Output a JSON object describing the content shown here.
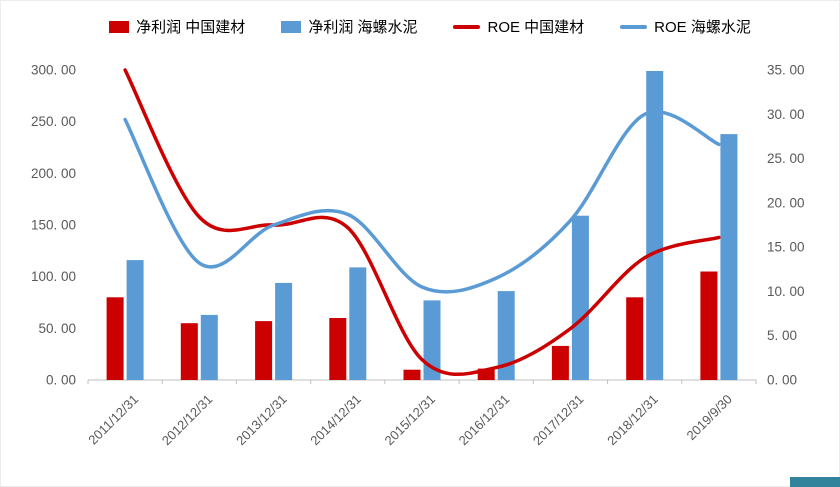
{
  "page": {
    "background": "#ffffff"
  },
  "colors": {
    "red": "#CC0000",
    "blue": "#5B9BD5",
    "axis_text": "#595959",
    "axis_line": "#BFBFBF",
    "legend_text": "#000000",
    "corner_artifact": "#31849B"
  },
  "chart_data": {
    "type": "combo-bar-line",
    "title": "",
    "grid": false,
    "legend_position": "top",
    "categories": [
      "2011/12/31",
      "2012/12/31",
      "2013/12/31",
      "2014/12/31",
      "2015/12/31",
      "2016/12/31",
      "2017/12/31",
      "2018/12/31",
      "2019/9/30"
    ],
    "series": [
      {
        "name": "净利润 中国建材",
        "type": "bar",
        "axis": "left",
        "color": "#CC0000",
        "values": [
          80,
          55,
          57,
          60,
          10,
          11,
          33,
          80,
          105
        ]
      },
      {
        "name": "净利润 海螺水泥",
        "type": "bar",
        "axis": "left",
        "color": "#5B9BD5",
        "values": [
          116,
          63,
          94,
          109,
          77,
          86,
          159,
          299,
          238
        ]
      },
      {
        "name": "ROE 中国建材",
        "type": "line",
        "axis": "right",
        "color": "#CC0000",
        "values": [
          35.0,
          18.4,
          17.5,
          17.2,
          2.3,
          1.4,
          5.8,
          13.8,
          16.1
        ]
      },
      {
        "name": "ROE 海螺水泥",
        "type": "line",
        "axis": "right",
        "color": "#5B9BD5",
        "values": [
          29.4,
          13.2,
          17.5,
          18.7,
          10.5,
          11.5,
          18.0,
          30.0,
          26.6
        ]
      }
    ],
    "left_axis": {
      "min": 0,
      "max": 300,
      "step": 50,
      "tick_labels": [
        "0. 00",
        "50. 00",
        "100. 00",
        "150. 00",
        "200. 00",
        "250. 00",
        "300. 00"
      ]
    },
    "right_axis": {
      "min": 0,
      "max": 35,
      "step": 5,
      "tick_labels": [
        "0. 00",
        "5. 00",
        "10. 00",
        "15. 00",
        "20. 00",
        "25. 00",
        "30. 00",
        "35. 00"
      ]
    }
  }
}
